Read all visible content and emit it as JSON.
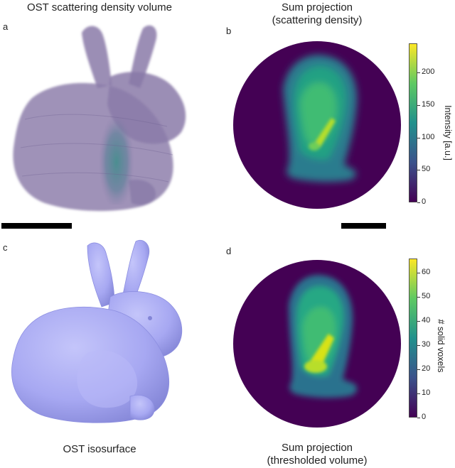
{
  "panels": {
    "a": {
      "letter": "a",
      "title": "OST scattering density volume"
    },
    "b": {
      "letter": "b",
      "title_line1": "Sum projection",
      "title_line2": "(scattering density)",
      "colorbar": {
        "label": "Intensity [a.u.]",
        "ticks": [
          "0",
          "50",
          "100",
          "150",
          "200"
        ],
        "max": 245
      }
    },
    "c": {
      "letter": "c",
      "title": "OST isosurface"
    },
    "d": {
      "letter": "d",
      "title_line1": "Sum projection",
      "title_line2": "(thresholded volume)",
      "colorbar": {
        "label": "# solid voxels",
        "ticks": [
          "0",
          "10",
          "20",
          "30",
          "40",
          "50",
          "60"
        ],
        "max": 66
      }
    }
  },
  "colors": {
    "volume_purple": "#8a7aa8",
    "volume_teal": "#3d8e8a",
    "isosurface": "#a7a8f2",
    "viridis_dark": "#440154",
    "viridis_mid": "#21918c",
    "viridis_light": "#5ec962",
    "viridis_yellow": "#fde725"
  }
}
